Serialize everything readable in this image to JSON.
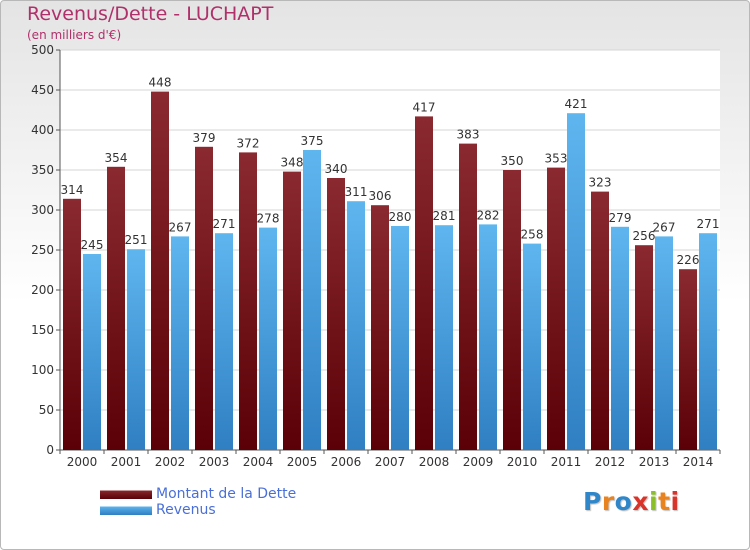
{
  "header": {
    "title": "Revenus/Dette - LUCHAPT",
    "subtitle": "(en milliers d'€)"
  },
  "legend": {
    "items": [
      {
        "label": "Montant de la Dette",
        "color": "#6b1014"
      },
      {
        "label": "Revenus",
        "color": "#4aa3e6"
      }
    ]
  },
  "logo": {
    "text": "Proxiti",
    "colors": [
      "#2f86c9",
      "#e8831f",
      "#2f86c9",
      "#d9332a",
      "#8bbf2a",
      "#e8831f",
      "#d9332a"
    ]
  },
  "chart_data": {
    "type": "bar",
    "categories": [
      "2000",
      "2001",
      "2002",
      "2003",
      "2004",
      "2005",
      "2006",
      "2007",
      "2008",
      "2009",
      "2010",
      "2011",
      "2012",
      "2013",
      "2014"
    ],
    "series": [
      {
        "name": "Montant de la Dette",
        "color": "#6b1014",
        "values": [
          314,
          354,
          448,
          379,
          372,
          348,
          340,
          306,
          417,
          383,
          350,
          353,
          323,
          256,
          226
        ]
      },
      {
        "name": "Revenus",
        "color": "#4aa3e6",
        "values": [
          245,
          251,
          267,
          271,
          278,
          375,
          311,
          280,
          281,
          282,
          258,
          421,
          279,
          267,
          271
        ]
      }
    ],
    "ylim": [
      0,
      500
    ],
    "yticks": [
      0,
      50,
      100,
      150,
      200,
      250,
      300,
      350,
      400,
      450,
      500
    ],
    "grid": true,
    "legend_position": "bottom-left"
  }
}
